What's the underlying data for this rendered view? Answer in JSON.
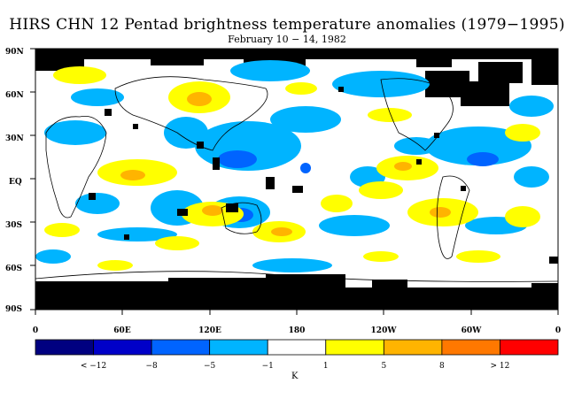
{
  "title": "HIRS CHN 12 Pentad brightness temperature anomalies (1979−1995)",
  "subtitle": "February 10 − 14, 1982",
  "map": {
    "lat_labels": [
      "90N",
      "60N",
      "30N",
      "EQ",
      "30S",
      "60S",
      "90S"
    ],
    "lon_labels": [
      "0",
      "60E",
      "120E",
      "180",
      "120W",
      "60W",
      "0"
    ],
    "colors": {
      "missing": "#000000",
      "neutral": "#ffffff",
      "cold_1": "#00b4ff",
      "cold_2": "#0064ff",
      "warm_1": "#ffff00",
      "warm_2": "#ffb400"
    }
  },
  "colorbar": {
    "bins": [
      {
        "color": "#000080"
      },
      {
        "color": "#0000c8"
      },
      {
        "color": "#0064ff"
      },
      {
        "color": "#00b4ff"
      },
      {
        "color": "#ffffff"
      },
      {
        "color": "#ffff00"
      },
      {
        "color": "#ffb400"
      },
      {
        "color": "#ff7800"
      },
      {
        "color": "#ff0000"
      }
    ],
    "labels": [
      "< −12",
      "−8",
      "−5",
      "−1",
      "1",
      "5",
      "8",
      "> 12"
    ],
    "units": "K"
  }
}
